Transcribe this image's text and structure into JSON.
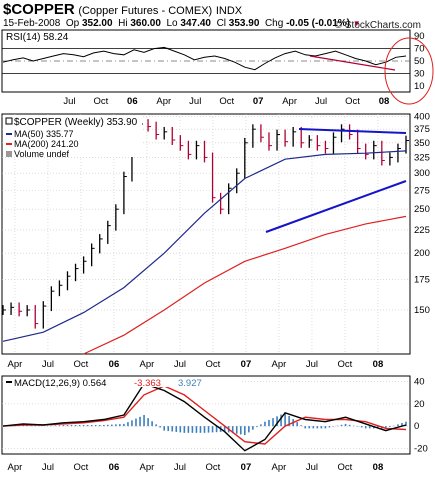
{
  "header": {
    "symbol": "$COPPER",
    "description": "(Copper Futures - COMEX)",
    "index_tag": "INDX",
    "date": "15-Feb-2008",
    "open_label": "Op",
    "open": "352.00",
    "high_label": "Hi",
    "high": "360.00",
    "low_label": "Lo",
    "low": "347.40",
    "close_label": "Cl",
    "close": "353.90",
    "change_label": "Chg",
    "change": "-0.05 (-0.01%)",
    "brand": "© StockCharts.com"
  },
  "colors": {
    "price_up": "#000000",
    "price_down": "#b00033",
    "ma50": "#1e2a8a",
    "ma200": "#e02020",
    "trendline": "#1414c8",
    "rsi_line": "#000000",
    "rsi_fill": "#444444",
    "macd_line": "#000000",
    "macd_signal": "#e02020",
    "macd_hist": "#3c7fbf",
    "annotation_circle": "#e02020"
  },
  "chart_data": [
    {
      "type": "line",
      "panel": "rsi",
      "title": "RSI(14) 58.24",
      "y_ticks": [
        90,
        70,
        50,
        30,
        10
      ],
      "ylim": [
        0,
        100
      ],
      "x_tick_labels": [
        "Jul",
        "Oct",
        "06",
        "Apr",
        "Jul",
        "Oct",
        "07",
        "Apr",
        "Jul",
        "Oct",
        "08"
      ],
      "series": [
        {
          "name": "RSI(14)",
          "x": [
            0,
            5,
            10,
            15,
            20,
            25,
            30,
            35,
            40,
            45,
            50,
            55,
            60,
            65,
            70,
            75,
            80,
            85,
            90,
            95,
            100,
            105,
            110,
            115,
            120,
            125,
            130,
            135,
            140,
            145,
            150,
            155,
            160,
            165,
            170,
            175,
            180,
            185,
            190,
            195,
            200
          ],
          "values": [
            48,
            52,
            55,
            50,
            54,
            58,
            62,
            60,
            57,
            63,
            66,
            62,
            60,
            68,
            64,
            70,
            72,
            66,
            60,
            52,
            56,
            58,
            54,
            48,
            40,
            36,
            46,
            55,
            62,
            66,
            60,
            58,
            62,
            66,
            60,
            54,
            50,
            44,
            48,
            56,
            58
          ]
        }
      ]
    },
    {
      "type": "line",
      "panel": "price",
      "title": "$COPPER (Weekly) 353.90",
      "legend": [
        "MA(50) 335.77",
        "MA(200) 241.20",
        "Volume undef"
      ],
      "y_ticks": [
        400,
        375,
        350,
        325,
        300,
        275,
        250,
        225,
        200,
        175,
        150
      ],
      "scale": "log",
      "ylim": [
        120,
        405
      ],
      "x_tick_labels": [
        "Apr",
        "Jul",
        "Oct",
        "06",
        "Apr",
        "Jul",
        "Oct",
        "07",
        "Apr",
        "Jul",
        "Oct",
        "08"
      ],
      "series": [
        {
          "name": "$COPPER",
          "x": [
            0,
            4,
            8,
            12,
            16,
            20,
            24,
            28,
            32,
            36,
            40,
            44,
            48,
            52,
            56,
            60,
            64,
            68,
            72,
            76,
            80,
            84,
            88,
            92,
            96,
            100,
            104,
            108,
            112,
            116,
            120,
            124,
            128,
            132,
            136,
            140,
            144,
            148,
            152,
            156,
            160,
            164,
            168,
            172,
            176,
            180,
            184,
            188,
            192,
            196,
            200
          ],
          "values": [
            150,
            152,
            149,
            150,
            140,
            153,
            165,
            170,
            178,
            185,
            192,
            205,
            215,
            230,
            250,
            295,
            345,
            385,
            380,
            365,
            370,
            355,
            345,
            330,
            345,
            325,
            265,
            250,
            278,
            300,
            350,
            375,
            360,
            345,
            365,
            352,
            370,
            350,
            355,
            345,
            340,
            360,
            375,
            365,
            340,
            330,
            345,
            320,
            325,
            340,
            354
          ]
        },
        {
          "name": "MA(50)",
          "x": [
            0,
            20,
            40,
            60,
            80,
            100,
            120,
            140,
            160,
            180,
            200
          ],
          "values": [
            128,
            134,
            148,
            168,
            200,
            245,
            292,
            322,
            330,
            332,
            336
          ]
        },
        {
          "name": "MA(200)",
          "x": [
            40,
            60,
            80,
            100,
            120,
            140,
            160,
            180,
            200
          ],
          "values": [
            118,
            132,
            150,
            172,
            192,
            205,
            220,
            232,
            241
          ]
        }
      ]
    },
    {
      "type": "area",
      "panel": "macd",
      "title": "MACD(12,26,9) 0.564, -3.363, 3.927",
      "legend": [
        "MACD(12,26,9) 0.564",
        "-3.363",
        "3.927"
      ],
      "y_ticks": [
        40,
        20,
        0,
        -20
      ],
      "ylim": [
        -25,
        45
      ],
      "x_tick_labels": [
        "Apr",
        "Jul",
        "Oct",
        "06",
        "Apr",
        "Jul",
        "Oct",
        "07",
        "Apr",
        "Jul",
        "Oct",
        "08"
      ],
      "series": [
        {
          "name": "MACD",
          "x": [
            0,
            10,
            20,
            30,
            40,
            50,
            60,
            70,
            80,
            90,
            100,
            110,
            120,
            130,
            140,
            150,
            160,
            170,
            180,
            190,
            200
          ],
          "values": [
            0,
            2,
            1,
            3,
            4,
            6,
            10,
            38,
            32,
            22,
            8,
            -5,
            -22,
            -12,
            12,
            6,
            4,
            8,
            2,
            -4,
            1
          ]
        },
        {
          "name": "Signal",
          "x": [
            0,
            10,
            20,
            30,
            40,
            50,
            60,
            70,
            80,
            90,
            100,
            110,
            120,
            130,
            140,
            150,
            160,
            170,
            180,
            190,
            200
          ],
          "values": [
            0,
            1,
            1,
            2,
            3,
            5,
            8,
            28,
            36,
            28,
            14,
            0,
            -14,
            -16,
            0,
            8,
            6,
            6,
            4,
            -2,
            -3
          ]
        },
        {
          "name": "Histogram",
          "x": [
            0,
            10,
            20,
            30,
            40,
            50,
            60,
            70,
            80,
            90,
            100,
            110,
            120,
            130,
            140,
            150,
            160,
            170,
            180,
            190,
            200
          ],
          "values": [
            0,
            1,
            0,
            1,
            1,
            1,
            2,
            10,
            -4,
            -6,
            -6,
            -5,
            -8,
            4,
            12,
            -2,
            -2,
            2,
            -2,
            -2,
            4
          ]
        }
      ]
    }
  ]
}
